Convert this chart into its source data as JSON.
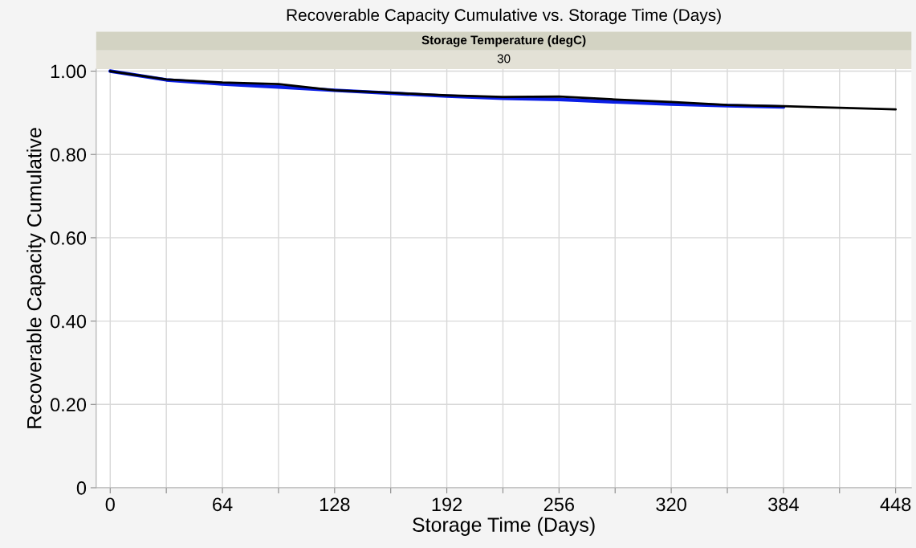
{
  "chart_data": {
    "type": "line",
    "title": "Recoverable Capacity Cumulative vs. Storage Time (Days)",
    "xlabel": "Storage Time (Days)",
    "ylabel": "Recoverable Capacity Cumulative",
    "annotations": [
      "Storage Temperature (degC)",
      "30"
    ],
    "x": [
      0,
      32,
      64,
      96,
      128,
      160,
      192,
      224,
      256,
      288,
      320,
      352,
      384,
      416,
      448
    ],
    "series": [
      {
        "color": "#0a1ee6",
        "x": [
          0,
          32,
          64,
          96,
          128,
          160,
          192,
          224,
          256,
          288,
          320,
          352,
          384
        ],
        "values": [
          1.0,
          0.979,
          0.969,
          0.962,
          0.954,
          0.947,
          0.94,
          0.935,
          0.932,
          0.926,
          0.921,
          0.917,
          0.914
        ]
      },
      {
        "color": "#000000",
        "values": [
          1.0,
          0.98,
          0.973,
          0.969,
          0.954,
          0.948,
          0.942,
          0.938,
          0.939,
          0.932,
          0.926,
          0.919,
          0.916,
          0.912,
          0.908
        ]
      }
    ],
    "xlim": [
      -8,
      457
    ],
    "ylim": [
      0,
      1.005
    ],
    "xticks": [
      0,
      {
        "value": 32,
        "label": null
      },
      64,
      {
        "value": 96,
        "label": null
      },
      128,
      {
        "value": 160,
        "label": null
      },
      192,
      {
        "value": 224,
        "label": null
      },
      256,
      {
        "value": 288,
        "label": null
      },
      320,
      {
        "value": 352,
        "label": null
      },
      384,
      {
        "value": 416,
        "label": null
      },
      448
    ],
    "yticks": [
      0,
      {
        "value": 0.2,
        "label": "0.20"
      },
      {
        "value": 0.4,
        "label": "0.40"
      },
      {
        "value": 0.6,
        "label": "0.60"
      },
      {
        "value": 0.8,
        "label": "0.80"
      },
      {
        "value": 1.0,
        "label": "1.00"
      }
    ],
    "grid": true,
    "marker": "none",
    "line_style": "solid"
  }
}
